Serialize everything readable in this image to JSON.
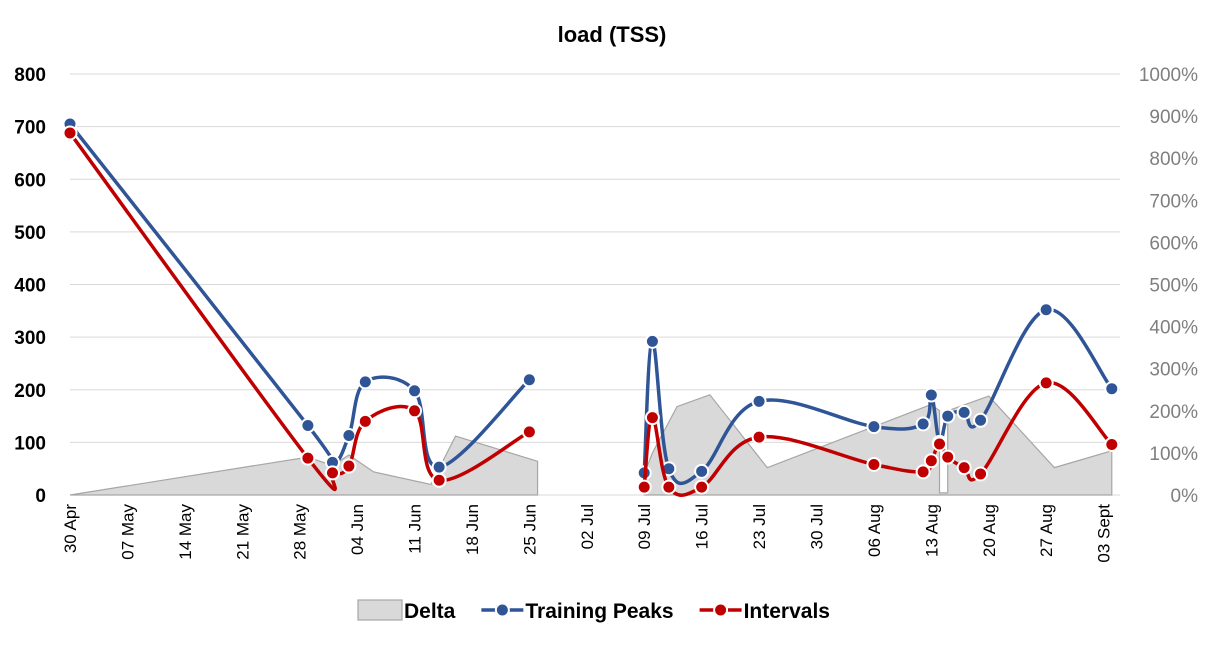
{
  "chart_data": {
    "type": "line",
    "title": "load (TSS)",
    "x_axis": {
      "type": "date",
      "range": [
        "2018-04-30",
        "2018-09-05"
      ],
      "tick_dates": [
        "2018-04-30",
        "2018-05-07",
        "2018-05-14",
        "2018-05-21",
        "2018-05-28",
        "2018-06-04",
        "2018-06-11",
        "2018-06-18",
        "2018-06-25",
        "2018-07-02",
        "2018-07-09",
        "2018-07-16",
        "2018-07-23",
        "2018-07-30",
        "2018-08-06",
        "2018-08-13",
        "2018-08-20",
        "2018-08-27",
        "2018-09-03"
      ],
      "tick_labels": [
        "30 Apr",
        "07 May",
        "14 May",
        "21 May",
        "28 May",
        "04 Jun",
        "11 Jun",
        "18 Jun",
        "25 Jun",
        "02 Jul",
        "09 Jul",
        "16 Jul",
        "23 Jul",
        "30 Jul",
        "06 Aug",
        "13 Aug",
        "20 Aug",
        "27 Aug",
        "03 Sept"
      ]
    },
    "y_left": {
      "ylim": [
        0,
        800
      ],
      "ticks": [
        0,
        100,
        200,
        300,
        400,
        500,
        600,
        700,
        800
      ],
      "tick_labels": [
        "0",
        "100",
        "200",
        "300",
        "400",
        "500",
        "600",
        "700",
        "800"
      ]
    },
    "y_right": {
      "ylim": [
        0,
        10
      ],
      "ticks": [
        0,
        1,
        2,
        3,
        4,
        5,
        6,
        7,
        8,
        9,
        10
      ],
      "tick_labels": [
        "0%",
        "100%",
        "200%",
        "300%",
        "400%",
        "500%",
        "600%",
        "700%",
        "800%",
        "900%",
        "1000%"
      ]
    },
    "grid": true,
    "legend": {
      "placement": "bottom"
    },
    "series": [
      {
        "name": "Delta",
        "type": "area",
        "axis": "right",
        "color": "#d9d9d9",
        "stroke": "#a6a6a6",
        "segments": [
          [
            {
              "x": "2018-04-30",
              "y": 0.0
            },
            {
              "x": "2018-05-29",
              "y": 0.9
            },
            {
              "x": "2018-06-01",
              "y": 0.7
            },
            {
              "x": "2018-06-03",
              "y": 0.95
            },
            {
              "x": "2018-06-06",
              "y": 0.55
            },
            {
              "x": "2018-06-13",
              "y": 0.25
            },
            {
              "x": "2018-06-16",
              "y": 1.4
            },
            {
              "x": "2018-06-26",
              "y": 0.8
            },
            {
              "x": "2018-06-26",
              "y": 0.0
            }
          ],
          [
            {
              "x": "2018-07-09",
              "y": 0.0
            },
            {
              "x": "2018-07-09",
              "y": 0.5
            },
            {
              "x": "2018-07-10",
              "y": 1.0
            },
            {
              "x": "2018-07-13",
              "y": 2.1
            },
            {
              "x": "2018-07-17",
              "y": 2.38
            },
            {
              "x": "2018-07-24",
              "y": 0.65
            },
            {
              "x": "2018-08-13",
              "y": 2.15
            },
            {
              "x": "2018-08-14",
              "y": 2.0
            },
            {
              "x": "2018-08-14",
              "y": 0.05
            },
            {
              "x": "2018-08-15",
              "y": 0.05
            },
            {
              "x": "2018-08-15",
              "y": 2.0
            },
            {
              "x": "2018-08-20",
              "y": 2.35
            },
            {
              "x": "2018-08-28",
              "y": 0.65
            },
            {
              "x": "2018-09-04",
              "y": 1.05
            },
            {
              "x": "2018-09-04",
              "y": 0.0
            }
          ]
        ]
      },
      {
        "name": "Training Peaks",
        "type": "line",
        "axis": "left",
        "color": "#2f5597",
        "segments": [
          [
            {
              "x": "2018-04-30",
              "y": 705
            },
            {
              "x": "2018-05-29",
              "y": 132
            },
            {
              "x": "2018-06-01",
              "y": 62
            },
            {
              "x": "2018-06-03",
              "y": 113
            },
            {
              "x": "2018-06-05",
              "y": 215
            },
            {
              "x": "2018-06-11",
              "y": 198
            },
            {
              "x": "2018-06-14",
              "y": 53
            },
            {
              "x": "2018-06-25",
              "y": 219
            }
          ],
          [
            {
              "x": "2018-07-09",
              "y": 42
            },
            {
              "x": "2018-07-10",
              "y": 292
            },
            {
              "x": "2018-07-12",
              "y": 50
            },
            {
              "x": "2018-07-16",
              "y": 45
            },
            {
              "x": "2018-07-23",
              "y": 178
            },
            {
              "x": "2018-08-06",
              "y": 130
            },
            {
              "x": "2018-08-12",
              "y": 135
            },
            {
              "x": "2018-08-13",
              "y": 190
            },
            {
              "x": "2018-08-14",
              "y": 100
            },
            {
              "x": "2018-08-15",
              "y": 150
            },
            {
              "x": "2018-08-17",
              "y": 157
            },
            {
              "x": "2018-08-19",
              "y": 142
            },
            {
              "x": "2018-08-27",
              "y": 352
            },
            {
              "x": "2018-09-04",
              "y": 202
            }
          ]
        ]
      },
      {
        "name": "Intervals",
        "type": "line",
        "axis": "left",
        "color": "#c00000",
        "segments": [
          [
            {
              "x": "2018-04-30",
              "y": 688
            },
            {
              "x": "2018-05-29",
              "y": 70
            },
            {
              "x": "2018-06-01",
              "y": 42
            },
            {
              "x": "2018-06-03",
              "y": 55
            },
            {
              "x": "2018-06-05",
              "y": 140
            },
            {
              "x": "2018-06-11",
              "y": 160
            },
            {
              "x": "2018-06-14",
              "y": 28
            },
            {
              "x": "2018-06-25",
              "y": 120
            }
          ],
          [
            {
              "x": "2018-07-09",
              "y": 15
            },
            {
              "x": "2018-07-10",
              "y": 147
            },
            {
              "x": "2018-07-12",
              "y": 15
            },
            {
              "x": "2018-07-16",
              "y": 15
            },
            {
              "x": "2018-07-23",
              "y": 110
            },
            {
              "x": "2018-08-06",
              "y": 58
            },
            {
              "x": "2018-08-12",
              "y": 44
            },
            {
              "x": "2018-08-13",
              "y": 65
            },
            {
              "x": "2018-08-14",
              "y": 97
            },
            {
              "x": "2018-08-15",
              "y": 72
            },
            {
              "x": "2018-08-17",
              "y": 52
            },
            {
              "x": "2018-08-19",
              "y": 40
            },
            {
              "x": "2018-08-27",
              "y": 213
            },
            {
              "x": "2018-09-04",
              "y": 96
            }
          ]
        ]
      }
    ]
  }
}
